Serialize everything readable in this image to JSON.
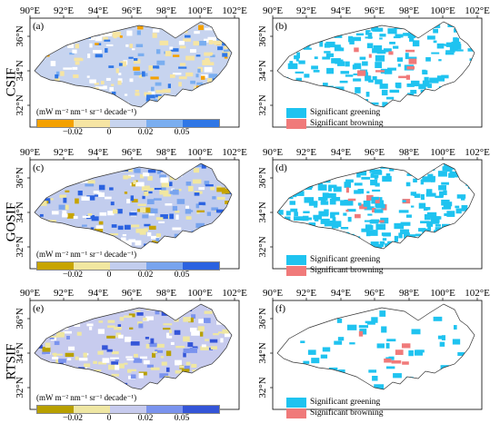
{
  "lon_ticks": [
    "90°E",
    "92°E",
    "94°E",
    "96°E",
    "98°E",
    "100°E",
    "102°E"
  ],
  "lat_ticks": [
    "36°N",
    "34°N",
    "32°N"
  ],
  "rows": [
    {
      "row_label": "CSIF",
      "left_panel": "(a)",
      "right_panel": "(b)",
      "colors": [
        "#f4a100",
        "#f6e5a3",
        "#c7d4ef",
        "#7aaef0",
        "#2f77e6"
      ]
    },
    {
      "row_label": "GOSIF",
      "left_panel": "(c)",
      "right_panel": "(d)",
      "colors": [
        "#c7a400",
        "#f1e7a0",
        "#c2cdee",
        "#78a4ee",
        "#2b62e0"
      ]
    },
    {
      "row_label": "RTSIF",
      "left_panel": "(e)",
      "right_panel": "(f)",
      "colors": [
        "#b8a000",
        "#efe7a3",
        "#c7cbee",
        "#7a93ee",
        "#3455d8"
      ]
    }
  ],
  "colorbar": {
    "unit": "(mW m⁻² nm⁻¹ sr⁻¹ decade⁻¹)",
    "ticks": [
      "−0.02",
      "0",
      "0.02",
      "0.05"
    ]
  },
  "legend": {
    "greening_label": "Significant greening",
    "browning_label": "Significant browning",
    "greening_color": "#1fc3f0",
    "browning_color": "#f07a7a"
  }
}
